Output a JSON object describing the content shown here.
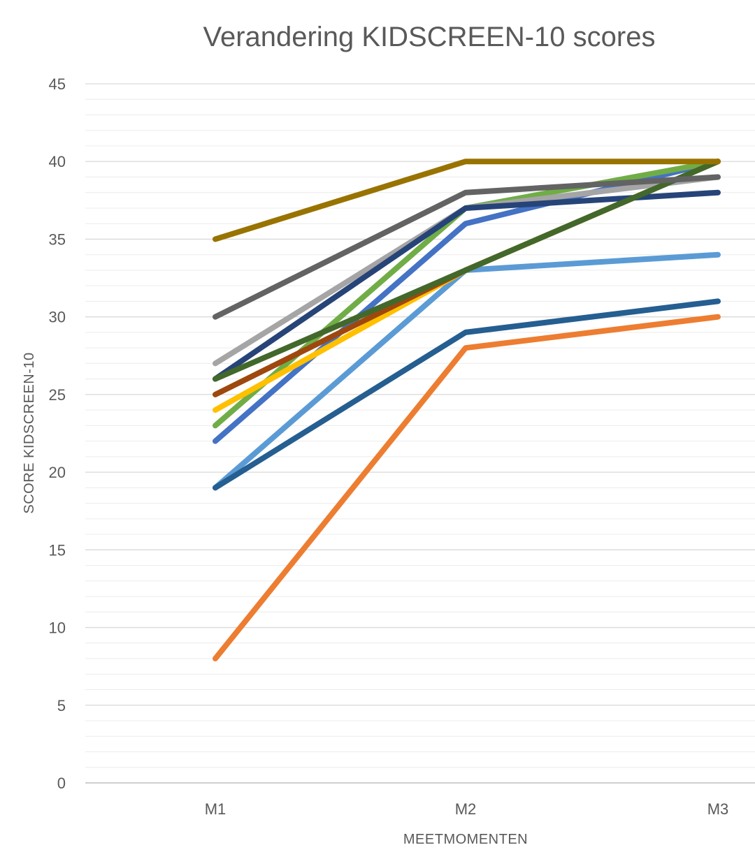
{
  "chart_data": {
    "type": "line",
    "title": "Verandering KIDSCREEN-10 scores",
    "xlabel": "MEETMOMENTEN",
    "ylabel": "SCORE KIDSCREEN-10",
    "categories": [
      "M1",
      "M2",
      "M3"
    ],
    "ylim": [
      0,
      45
    ],
    "y_major_ticks": [
      0,
      5,
      10,
      15,
      20,
      25,
      30,
      35,
      40,
      45
    ],
    "y_minor_step": 1,
    "grid": true,
    "legend": "none",
    "series": [
      {
        "color": "#ED7D31",
        "values": [
          8,
          28,
          30
        ]
      },
      {
        "color": "#5B9BD5",
        "values": [
          19,
          33,
          34
        ]
      },
      {
        "color": "#255E91",
        "values": [
          19,
          29,
          31
        ]
      },
      {
        "color": "#4472C4",
        "values": [
          22,
          36,
          40
        ]
      },
      {
        "color": "#70AD47",
        "values": [
          23,
          37,
          40
        ]
      },
      {
        "color": "#FFC000",
        "values": [
          24,
          33,
          40
        ]
      },
      {
        "color": "#9E480E",
        "values": [
          25,
          33,
          40
        ]
      },
      {
        "color": "#A5A5A5",
        "values": [
          27,
          37,
          39
        ]
      },
      {
        "color": "#264478",
        "values": [
          26,
          37,
          38
        ]
      },
      {
        "color": "#43682B",
        "values": [
          26,
          33,
          40
        ]
      },
      {
        "color": "#636363",
        "values": [
          30,
          38,
          39
        ]
      },
      {
        "color": "#997300",
        "values": [
          35,
          40,
          40
        ]
      }
    ]
  }
}
